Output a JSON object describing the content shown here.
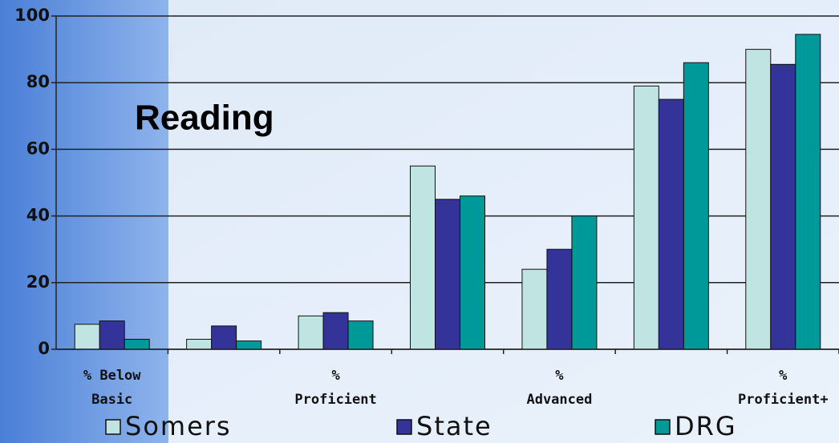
{
  "chart_data": {
    "type": "bar",
    "title": "Reading",
    "categories": [
      "% Below Basic",
      null,
      "% Proficient",
      null,
      "% Advanced",
      null,
      "% Proficient+"
    ],
    "series": [
      {
        "name": "Somers",
        "color": "#bfe4e2",
        "values": [
          7.5,
          3,
          10,
          55,
          24,
          79,
          90
        ]
      },
      {
        "name": "State",
        "color": "#333399",
        "values": [
          8.5,
          7,
          11,
          45,
          30,
          75,
          85.5
        ]
      },
      {
        "name": "DRG",
        "color": "#009999",
        "values": [
          3,
          2.5,
          8.5,
          46,
          40,
          86,
          94.5
        ]
      }
    ],
    "ylim": [
      0,
      100
    ],
    "yticks": [
      0,
      20,
      40,
      60,
      80,
      100
    ],
    "grid": true
  }
}
